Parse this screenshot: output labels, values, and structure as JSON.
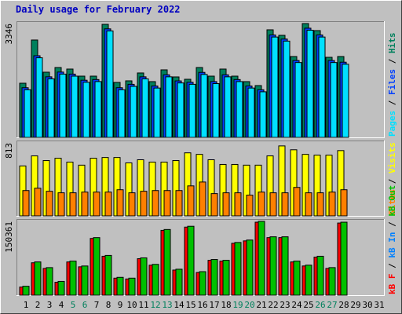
{
  "chart_data": {
    "type": "bar",
    "title": "Daily usage for February 2022",
    "categories": [
      "1",
      "2",
      "3",
      "4",
      "5",
      "6",
      "7",
      "8",
      "9",
      "10",
      "11",
      "12",
      "13",
      "14",
      "15",
      "16",
      "17",
      "18",
      "19",
      "20",
      "21",
      "22",
      "23",
      "24",
      "25",
      "26",
      "27",
      "28",
      "29",
      "30",
      "31"
    ],
    "highlighted": [
      4,
      5,
      11,
      12,
      18,
      19,
      25,
      26
    ],
    "highlight_color": "#00805c",
    "legend_separator": " / ",
    "panels": [
      {
        "ylim": [
          0,
          3346
        ],
        "series": [
          {
            "name": "Pages",
            "color": "#00e0ff",
            "values": [
              1400,
              2340,
              1720,
              1860,
              1800,
              1620,
              1640,
              3130,
              1400,
              1500,
              1720,
              1450,
              1780,
              1600,
              1560,
              1850,
              1580,
              1780,
              1640,
              1450,
              1340,
              2950,
              2830,
              2200,
              3150,
              2950,
              2200,
              2150
            ]
          },
          {
            "name": "Files",
            "color": "#0040ff",
            "values": [
              1460,
              2400,
              1780,
              1920,
              1860,
              1680,
              1700,
              3190,
              1460,
              1560,
              1780,
              1510,
              1840,
              1660,
              1620,
              1910,
              1640,
              1840,
              1700,
              1510,
              1400,
              3010,
              2890,
              2260,
              3210,
              3010,
              2260,
              2210
            ]
          },
          {
            "name": "Hits",
            "color": "#00805c",
            "values": [
              1592,
              2862,
              1916,
              2054,
              2008,
              1800,
              1800,
              3323,
              1616,
              1662,
              1893,
              1639,
              1985,
              1777,
              1708,
              2054,
              1800,
              2008,
              1800,
              1639,
              1523,
              3162,
              3000,
              2377,
              3346,
              3139,
              2354,
              2377
            ]
          }
        ]
      },
      {
        "ylim": [
          0,
          813
        ],
        "series": [
          {
            "name": "Sites",
            "color": "#ff8000",
            "values": [
              282,
              308,
              274,
              257,
              257,
              265,
              265,
              265,
              291,
              257,
              274,
              282,
              282,
              282,
              334,
              377,
              248,
              257,
              257,
              231,
              265,
              257,
              257,
              317,
              257,
              257,
              265,
              291
            ]
          },
          {
            "name": "Visits",
            "color": "#ffff00",
            "values": [
              556,
              668,
              616,
              642,
              599,
              565,
              642,
              650,
              650,
              590,
              625,
              599,
              599,
              616,
              702,
              685,
              625,
              573,
              573,
              565,
              565,
              668,
              779,
              736,
              685,
              676,
              676,
              727
            ]
          }
        ]
      },
      {
        "ylim": [
          0,
          150361
        ],
        "series": [
          {
            "name": "kB F",
            "color": "#ff0000",
            "values": [
              16500,
              66000,
              54500,
              26400,
              67700,
              57800,
              115600,
              79300,
              34700,
              33000,
              74300,
              61100,
              132100,
              51200,
              138700,
              46200,
              71000,
              69400,
              105700,
              110600,
              148700,
              117300,
              117300,
              67700,
              59500,
              77600,
              54500,
              147000
            ]
          },
          {
            "name": "kB In",
            "color": "#0080ff",
            "values": [
              0,
              0,
              0,
              0,
              0,
              0,
              0,
              0,
              0,
              0,
              0,
              0,
              0,
              0,
              0,
              0,
              0,
              0,
              0,
              0,
              0,
              0,
              0,
              0,
              0,
              0,
              0,
              0
            ]
          },
          {
            "name": "kB Out",
            "color": "#00c000",
            "values": [
              18172,
              67732,
              56168,
              28084,
              69384,
              59472,
              117292,
              80948,
              36344,
              34692,
              75992,
              62776,
              133812,
              52864,
              140420,
              47908,
              72688,
              71036,
              107380,
              112336,
              150361,
              118944,
              118944,
              69384,
              61124,
              79296,
              56168,
              148680
            ]
          }
        ]
      }
    ]
  }
}
